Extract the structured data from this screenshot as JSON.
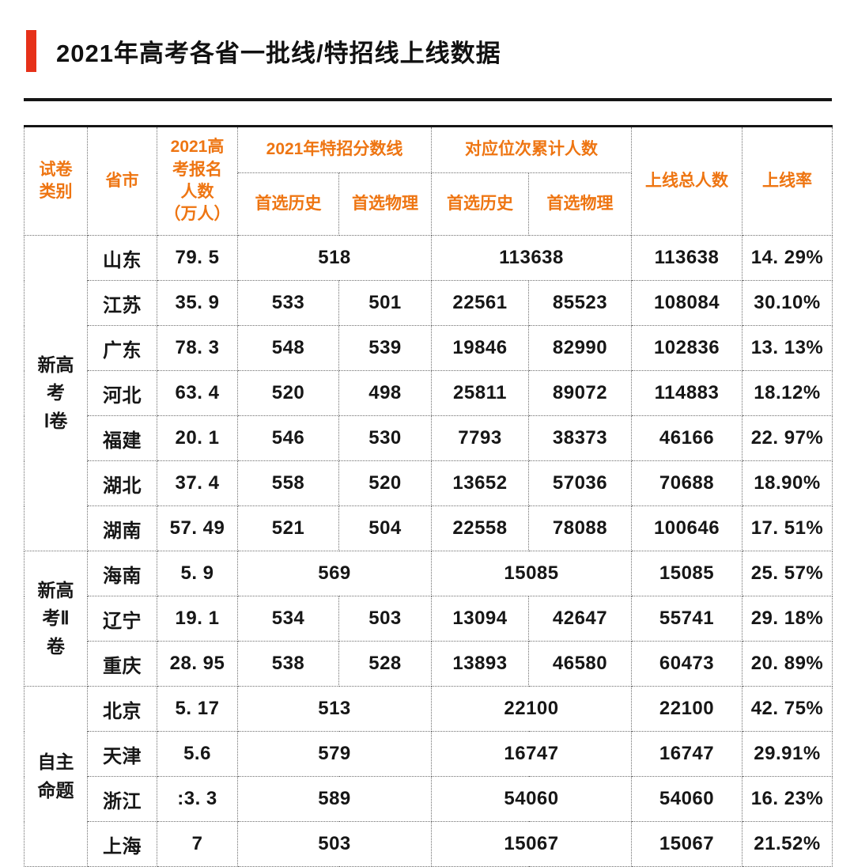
{
  "page": {
    "title": "2021年高考各省一批线/特招线上线数据"
  },
  "colors": {
    "accent_red": "#e63119",
    "header_orange": "#ee7512",
    "text_black": "#161616",
    "border_gray": "#6e6e6e"
  },
  "table": {
    "headers": {
      "exam_type": "试卷\n类别",
      "province": "省市",
      "applicants": "2021高\n考报名\n人数\n（万人）",
      "special_line": "2021年特招分数线",
      "rank_cumulative": "对应位次累计人数",
      "first_choice_history": "首选历史",
      "first_choice_physics": "首选物理",
      "total_above": "上线总人数",
      "rate": "上线率"
    },
    "groups": [
      {
        "label": "新高\n考\nⅠ卷",
        "rows": [
          {
            "province": "山东",
            "applicants": "79. 5",
            "special_line": {
              "merged": "518"
            },
            "rank": {
              "merged": "113638"
            },
            "total": "113638",
            "rate": "14. 29%"
          },
          {
            "province": "江苏",
            "applicants": "35. 9",
            "special_line": {
              "history": "533",
              "physics": "501"
            },
            "rank": {
              "history": "22561",
              "physics": "85523"
            },
            "total": "108084",
            "rate": "30.10%"
          },
          {
            "province": "广东",
            "applicants": "78. 3",
            "special_line": {
              "history": "548",
              "physics": "539"
            },
            "rank": {
              "history": "19846",
              "physics": "82990"
            },
            "total": "102836",
            "rate": "13. 13%"
          },
          {
            "province": "河北",
            "applicants": "63. 4",
            "special_line": {
              "history": "520",
              "physics": "498"
            },
            "rank": {
              "history": "25811",
              "physics": "89072"
            },
            "total": "114883",
            "rate": "18.12%"
          },
          {
            "province": "福建",
            "applicants": "20. 1",
            "special_line": {
              "history": "546",
              "physics": "530"
            },
            "rank": {
              "history": "7793",
              "physics": "38373"
            },
            "total": "46166",
            "rate": "22. 97%"
          },
          {
            "province": "湖北",
            "applicants": "37. 4",
            "special_line": {
              "history": "558",
              "physics": "520"
            },
            "rank": {
              "history": "13652",
              "physics": "57036"
            },
            "total": "70688",
            "rate": "18.90%"
          },
          {
            "province": "湖南",
            "applicants": "57. 49",
            "special_line": {
              "history": "521",
              "physics": "504"
            },
            "rank": {
              "history": "22558",
              "physics": "78088"
            },
            "total": "100646",
            "rate": "17. 51%"
          }
        ]
      },
      {
        "label": "新高\n考Ⅱ\n卷",
        "rows": [
          {
            "province": "海南",
            "applicants": "5. 9",
            "special_line": {
              "merged": "569"
            },
            "rank": {
              "merged": "15085"
            },
            "total": "15085",
            "rate": "25. 57%"
          },
          {
            "province": "辽宁",
            "applicants": "19. 1",
            "special_line": {
              "history": "534",
              "physics": "503"
            },
            "rank": {
              "history": "13094",
              "physics": "42647"
            },
            "total": "55741",
            "rate": "29. 18%"
          },
          {
            "province": "重庆",
            "applicants": "28. 95",
            "special_line": {
              "history": "538",
              "physics": "528"
            },
            "rank": {
              "history": "13893",
              "physics": "46580"
            },
            "total": "60473",
            "rate": "20. 89%"
          }
        ]
      },
      {
        "label": "自主\n命题",
        "rows": [
          {
            "province": "北京",
            "applicants": "5. 17",
            "special_line": {
              "merged": "513"
            },
            "rank": {
              "merged": "22100"
            },
            "total": "22100",
            "rate": "42. 75%"
          },
          {
            "province": "天津",
            "applicants": "5.6",
            "special_line": {
              "merged": "579"
            },
            "rank": {
              "merged": "16747"
            },
            "total": "16747",
            "rate": "29.91%"
          },
          {
            "province": "浙江",
            "applicants": ":3. 3",
            "special_line": {
              "merged": "589"
            },
            "rank": {
              "merged": "54060"
            },
            "total": "54060",
            "rate": "16. 23%"
          },
          {
            "province": "上海",
            "applicants": "7",
            "special_line": {
              "merged": "503"
            },
            "rank": {
              "merged": "15067"
            },
            "total": "15067",
            "rate": "21.52%"
          }
        ]
      }
    ]
  }
}
